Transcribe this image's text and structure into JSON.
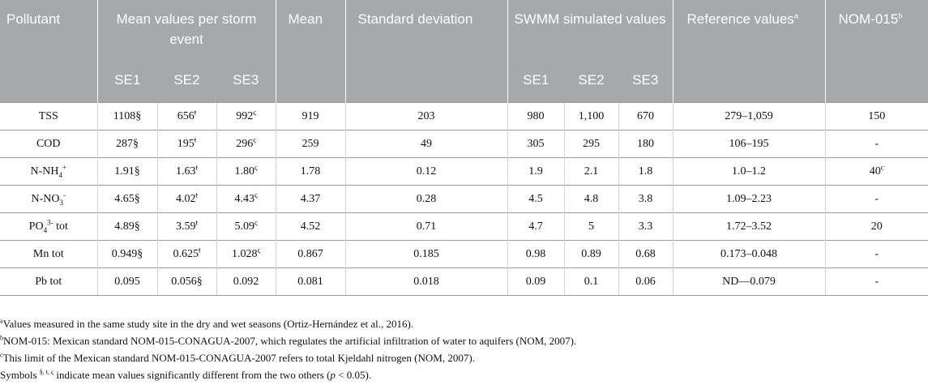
{
  "header": {
    "pollutant": "Pollutant",
    "mean_per_storm": "Mean values per storm event",
    "mean": "Mean",
    "std": "Standard deviation",
    "swmm": "SWMM simulated values",
    "reference": "Reference values",
    "reference_mark": "a",
    "nom": "NOM-015",
    "nom_mark": "b",
    "se1": "SE1",
    "se2": "SE2",
    "se3": "SE3"
  },
  "rows": [
    {
      "pollutant": "TSS",
      "se1": "1108§",
      "se2": "656",
      "se2_mark": "ŧ",
      "se3": "992",
      "se3_mark": "ς",
      "mean": "919",
      "std": "203",
      "sim1": "980",
      "sim2": "1,100",
      "sim3": "670",
      "ref": "279–1,059",
      "nom": "150",
      "nom_mark": ""
    },
    {
      "pollutant": "COD",
      "se1": "287§",
      "se2": "195",
      "se2_mark": "ŧ",
      "se3": "296",
      "se3_mark": "ς",
      "mean": "259",
      "std": "49",
      "sim1": "305",
      "sim2": "295",
      "sim3": "180",
      "ref": "106–195",
      "nom": "-",
      "nom_mark": ""
    },
    {
      "pollutant_base": "N-NH",
      "pollutant_sub": "4",
      "pollutant_sup": "+",
      "se1": "1.91§",
      "se2": "1.63",
      "se2_mark": "ŧ",
      "se3": "1.80",
      "se3_mark": "ς",
      "mean": "1.78",
      "std": "0.12",
      "sim1": "1.9",
      "sim2": "2.1",
      "sim3": "1.8",
      "ref": "1.0–1.2",
      "nom": "40",
      "nom_mark": "c"
    },
    {
      "pollutant_base": "N-NO",
      "pollutant_sub": "3",
      "pollutant_sup": "-",
      "se1": "4.65§",
      "se2": "4.02",
      "se2_mark": "ŧ",
      "se3": "4.43",
      "se3_mark": "ς",
      "mean": "4.37",
      "std": "0.28",
      "sim1": "4.5",
      "sim2": "4.8",
      "sim3": "3.8",
      "ref": "1.09–2.23",
      "nom": "-",
      "nom_mark": ""
    },
    {
      "pollutant_base": "PO",
      "pollutant_sub": "4",
      "pollutant_sup": "3-",
      "pollutant_tail": " tot",
      "se1": "4.89§",
      "se2": "3.59",
      "se2_mark": "ŧ",
      "se3": "5.09",
      "se3_mark": "ς",
      "mean": "4.52",
      "std": "0.71",
      "sim1": "4.7",
      "sim2": "5",
      "sim3": "3.3",
      "ref": "1.72–3.52",
      "nom": "20",
      "nom_mark": ""
    },
    {
      "pollutant": "Mn tot",
      "se1": "0.949§",
      "se2": "0.625",
      "se2_mark": "ŧ",
      "se3": "1.028",
      "se3_mark": "ς",
      "mean": "0.867",
      "std": "0.185",
      "sim1": "0.98",
      "sim2": "0.89",
      "sim3": "0.68",
      "ref": "0.173–0.048",
      "nom": "-",
      "nom_mark": ""
    },
    {
      "pollutant": "Pb tot",
      "se1": "0.095",
      "se2": "0.056§",
      "se2_mark": "",
      "se3": "0.092",
      "se3_mark": "",
      "mean": "0.081",
      "std": "0.018",
      "sim1": "0.09",
      "sim2": "0.1",
      "sim3": "0.06",
      "ref": "ND—0.079",
      "nom": "-",
      "nom_mark": ""
    }
  ],
  "footnotes": {
    "a_mark": "a",
    "a_text": "Values measured in the same study site in the dry and wet seasons (Ortiz-Hernández et al., 2016).",
    "b_mark": "b",
    "b_text": "NOM-015: Mexican standard NOM-015-CONAGUA-2007, which regulates the artificial infiltration of water to aquifers (NOM, 2007).",
    "c_mark": "c",
    "c_text": "This limit of the Mexican standard NOM-015-CONAGUA-2007 refers to total Kjeldahl nitrogen (NOM, 2007).",
    "symbols_lead": "Symbols",
    "symbols_marks": "§, ŧ, ς",
    "symbols_mid": " indicate mean values significantly different from the two others (",
    "symbols_p": "p",
    "symbols_end": " < 0.05)."
  }
}
